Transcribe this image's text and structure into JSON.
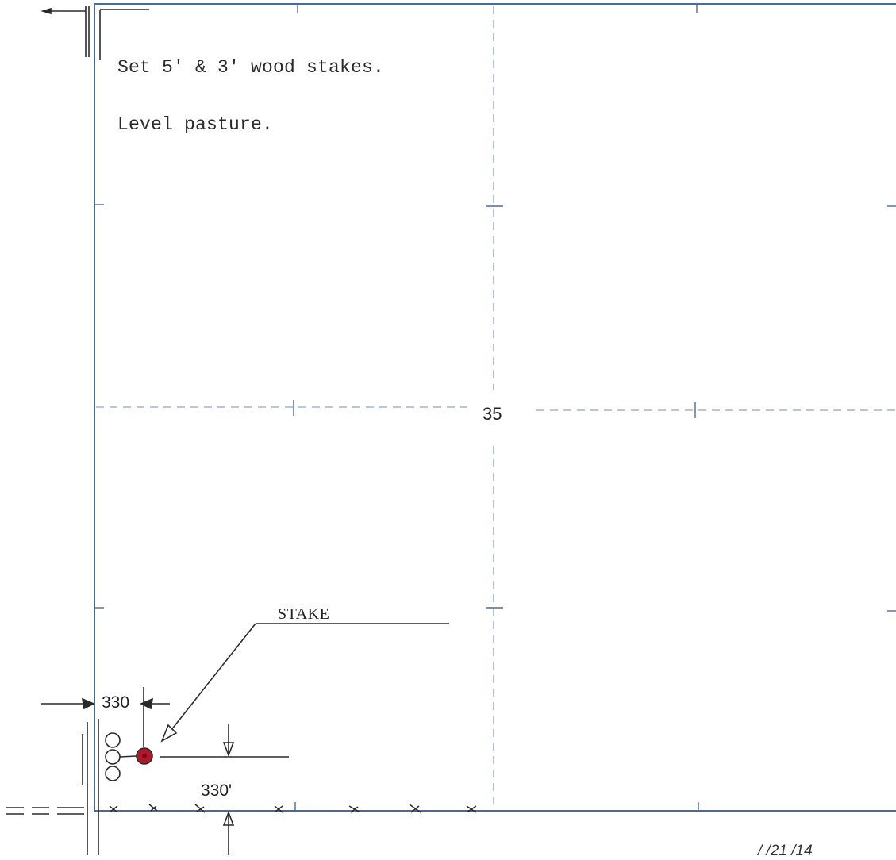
{
  "notes": [
    "Set 5' & 3' wood stakes.",
    "Level pasture."
  ],
  "section_number": "35",
  "stake_label": "STAKE",
  "dimensions": {
    "horizontal": "330",
    "vertical": "330'"
  },
  "sheet_date": "/ /21 /14",
  "colors": {
    "section_line": "#4a6a9e",
    "grid_dash": "#8fa2c2",
    "ink": "#2a2a2a",
    "stake_fill": "#b0182a"
  }
}
